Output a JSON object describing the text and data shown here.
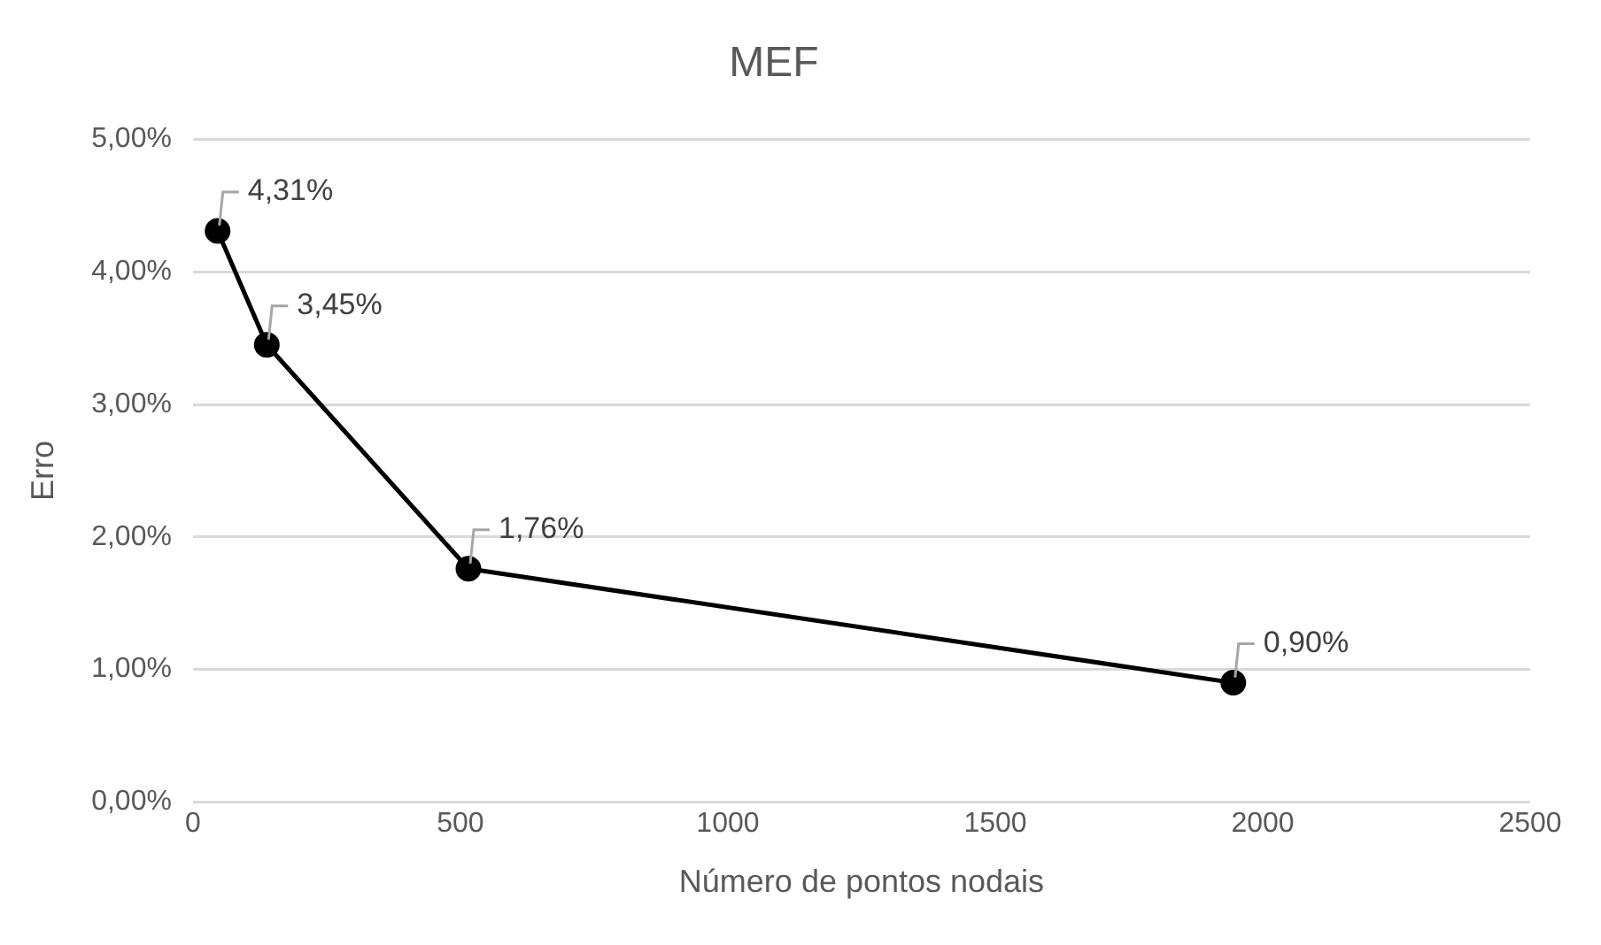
{
  "chart_data": {
    "type": "line",
    "title": "MEF",
    "xlabel": "Número de pontos nodais",
    "ylabel": "Erro",
    "x": [
      46,
      138,
      515,
      1945
    ],
    "series": [
      {
        "color": "#000000",
        "values": [
          4.31,
          3.45,
          1.76,
          0.9
        ],
        "value_labels": [
          "4,31%",
          "3,45%",
          "1,76%",
          "0,90%"
        ]
      }
    ],
    "xlim": [
      0,
      2500
    ],
    "xticks": [
      0,
      500,
      1000,
      1500,
      2000,
      2500
    ],
    "ylim": [
      0,
      5
    ],
    "yticks": [
      {
        "value": 0,
        "label": "0,00%"
      },
      {
        "value": 1,
        "label": "1,00%"
      },
      {
        "value": 2,
        "label": "2,00%"
      },
      {
        "value": 3,
        "label": "3,00%"
      },
      {
        "value": 4,
        "label": "4,00%"
      },
      {
        "value": 5,
        "label": "5,00%"
      }
    ],
    "grid": "y",
    "legend": false,
    "marker": "circle",
    "line_style": "solid"
  }
}
